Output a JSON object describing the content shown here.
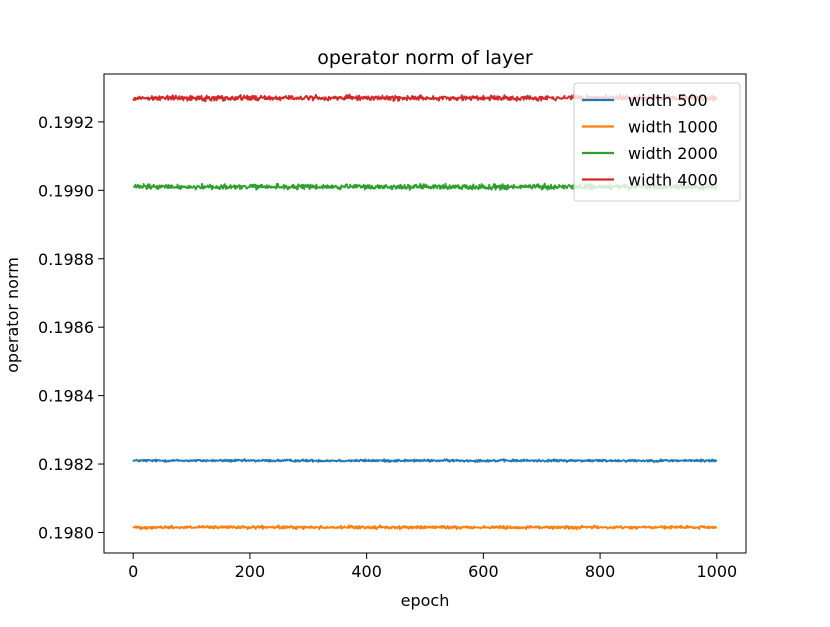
{
  "chart_data": {
    "type": "line",
    "title": "operator norm of layer",
    "xlabel": "epoch",
    "ylabel": "operator norm",
    "xlim": [
      -50,
      1050
    ],
    "ylim": [
      0.19794,
      0.19934
    ],
    "xticks": [
      0,
      200,
      400,
      600,
      800,
      1000
    ],
    "xtick_labels": [
      "0",
      "200",
      "400",
      "600",
      "800",
      "1000"
    ],
    "yticks": [
      0.198,
      0.1982,
      0.1984,
      0.1986,
      0.1988,
      0.199,
      0.1992
    ],
    "ytick_labels": [
      "0.1980",
      "0.1982",
      "0.1984",
      "0.1986",
      "0.1988",
      "0.1990",
      "0.1992"
    ],
    "grid": false,
    "legend_position": "upper right",
    "n_epochs": 1000,
    "series": [
      {
        "name": "width 500",
        "color": "#1f77b4",
        "mean": 0.19821,
        "noise_amplitude": 3.5e-06
      },
      {
        "name": "width 1000",
        "color": "#ff7f0e",
        "mean": 0.198015,
        "noise_amplitude": 4.5e-06
      },
      {
        "name": "width 2000",
        "color": "#2ca02c",
        "mean": 0.19901,
        "noise_amplitude": 7.5e-06
      },
      {
        "name": "width 4000",
        "color": "#d62728",
        "mean": 0.19927,
        "noise_amplitude": 7.5e-06
      }
    ]
  }
}
